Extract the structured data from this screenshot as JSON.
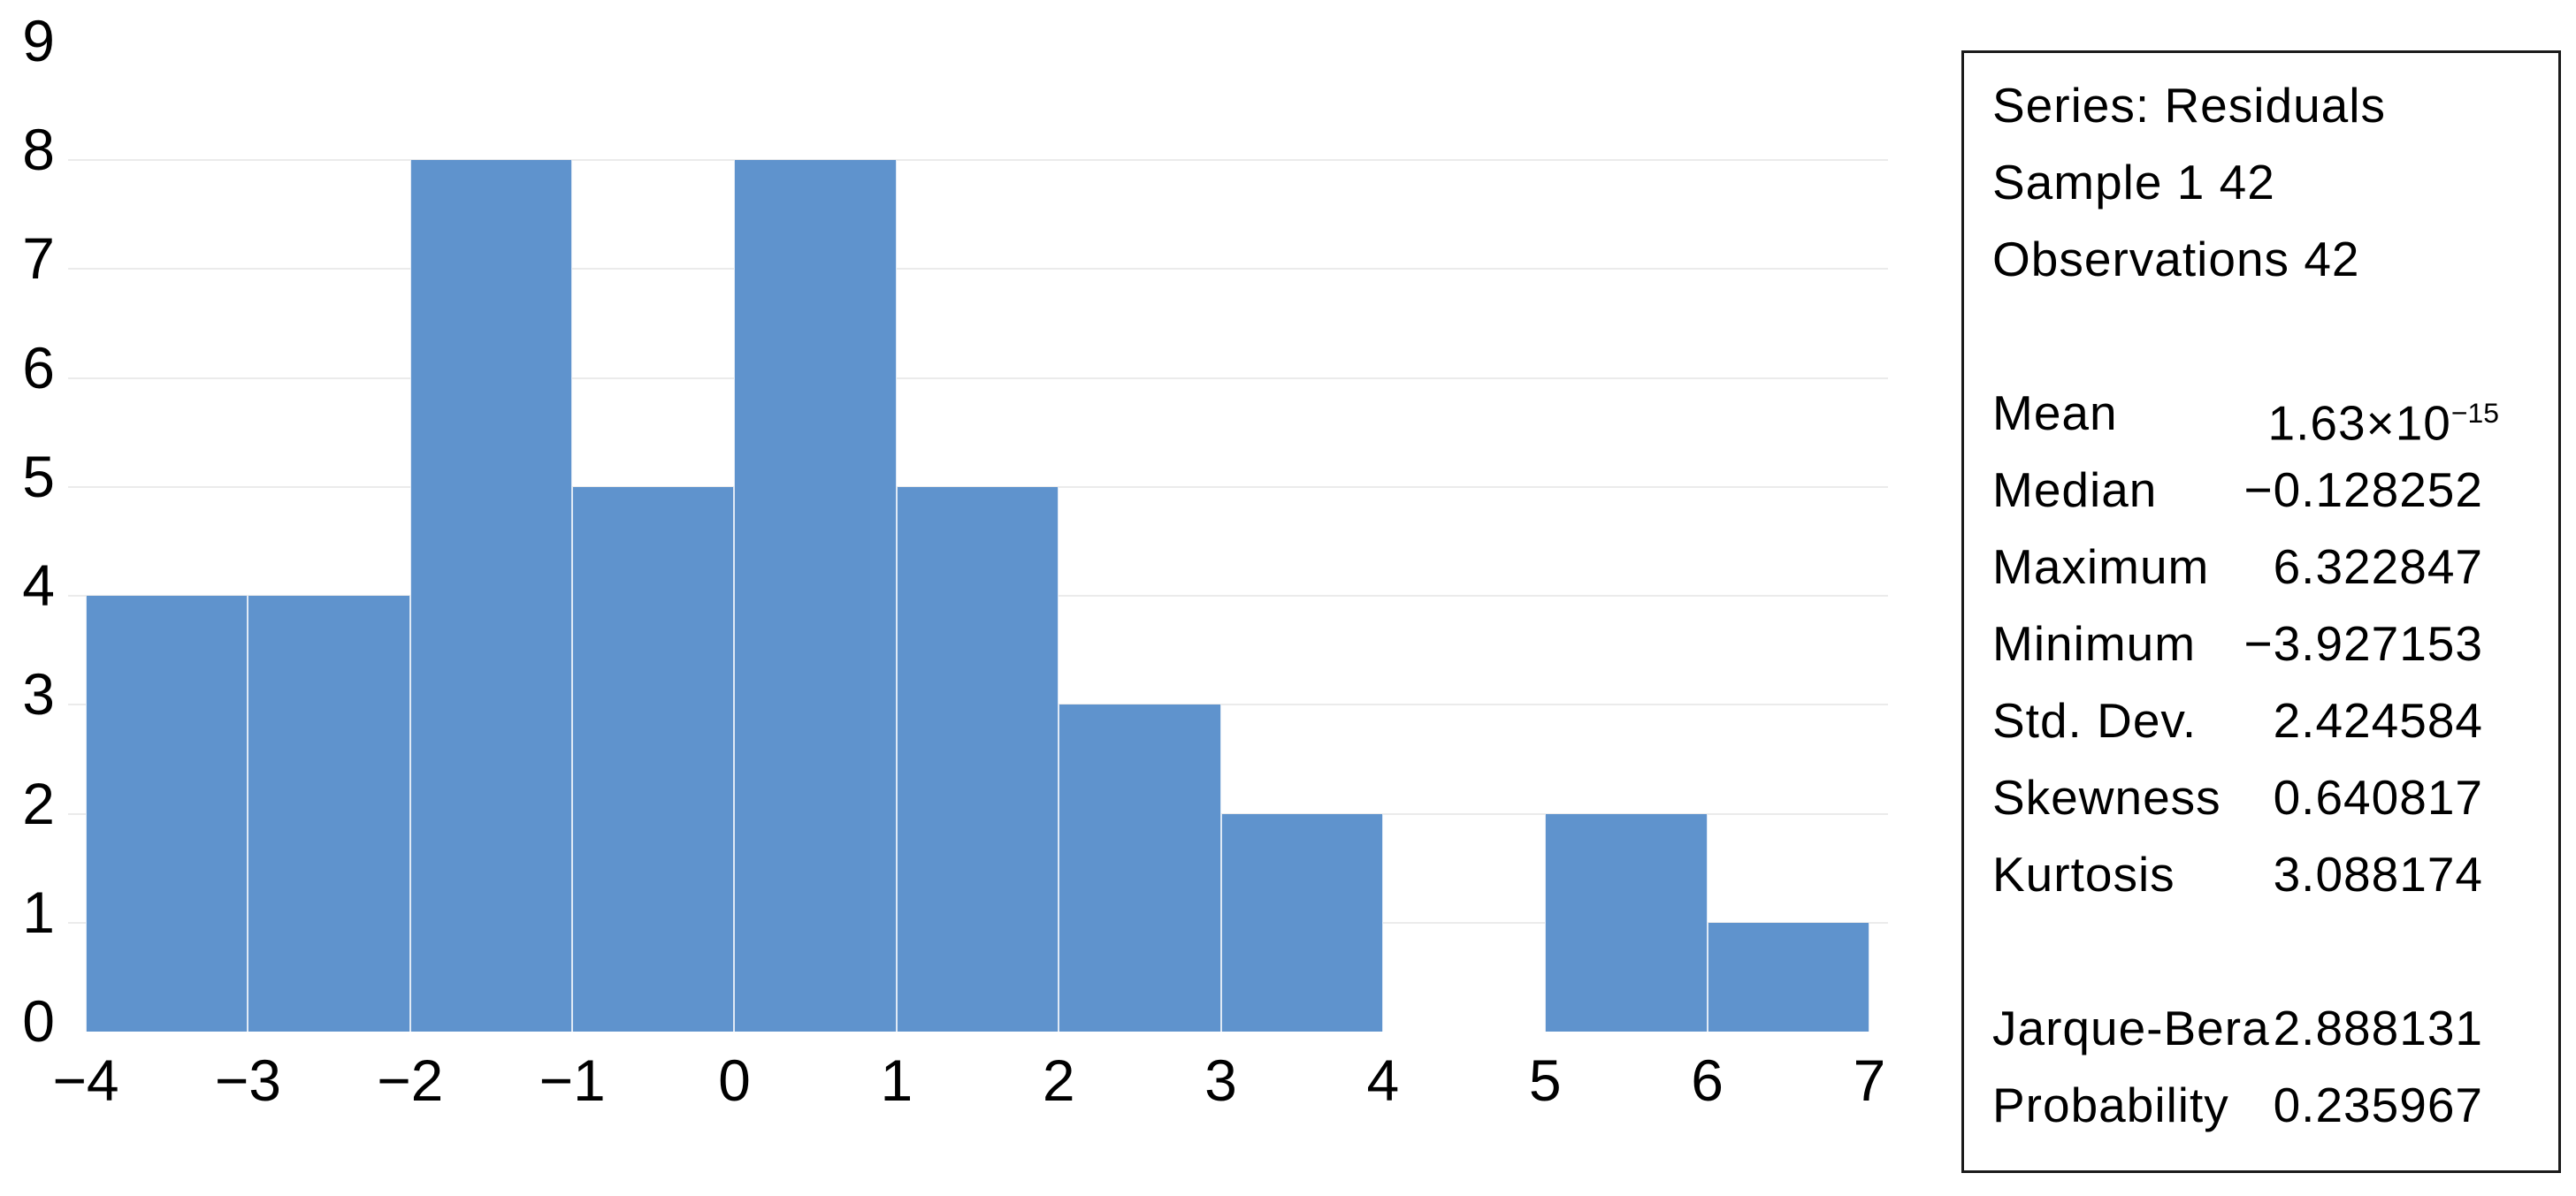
{
  "chart": {
    "bar_color": "#5f93cd",
    "grid_color": "#ebebeb",
    "yticks": [
      9,
      8,
      7,
      6,
      5,
      4,
      3,
      2,
      1,
      0
    ],
    "xticks": [
      "−4",
      "−3",
      "−2",
      "−1",
      "0",
      "1",
      "2",
      "3",
      "4",
      "5",
      "6",
      "7"
    ]
  },
  "chart_data": {
    "type": "bar",
    "title": "",
    "xlabel": "",
    "ylabel": "",
    "bin_edges": [
      -4,
      -3,
      -2,
      -1,
      0,
      1,
      2,
      3,
      4,
      5,
      6,
      7
    ],
    "bin_labels": [
      "[-4,-3)",
      "[-3,-2)",
      "[-2,-1)",
      "[-1,0)",
      "[0,1)",
      "[1,2)",
      "[2,3)",
      "[3,4)",
      "[4,5)",
      "[5,6)",
      "[6,7)"
    ],
    "values": [
      4,
      4,
      8,
      5,
      8,
      5,
      3,
      2,
      0,
      2,
      1
    ],
    "ylim": [
      0,
      9
    ],
    "xlim": [
      -4,
      7
    ],
    "grid": true,
    "gridline_levels": [
      1,
      2,
      3,
      4,
      5,
      6,
      7,
      8
    ],
    "legend_position": "none"
  },
  "stats_panel": {
    "title_lines": [
      "Series: Residuals",
      "Sample 1 42",
      "Observations 42"
    ],
    "mean": {
      "label": "Mean",
      "value_base": "1.63×10",
      "value_exponent": "−15"
    },
    "rows": [
      {
        "label": "Median",
        "value": "−0.128252"
      },
      {
        "label": "Maximum",
        "value": "6.322847"
      },
      {
        "label": "Minimum",
        "value": "−3.927153"
      },
      {
        "label": "Std. Dev.",
        "value": "2.424584"
      },
      {
        "label": "Skewness",
        "value": "0.640817"
      },
      {
        "label": "Kurtosis",
        "value": "3.088174"
      }
    ],
    "rows2": [
      {
        "label": "Jarque-Bera",
        "value": "2.888131"
      },
      {
        "label": "Probability",
        "value": "0.235967"
      }
    ]
  }
}
